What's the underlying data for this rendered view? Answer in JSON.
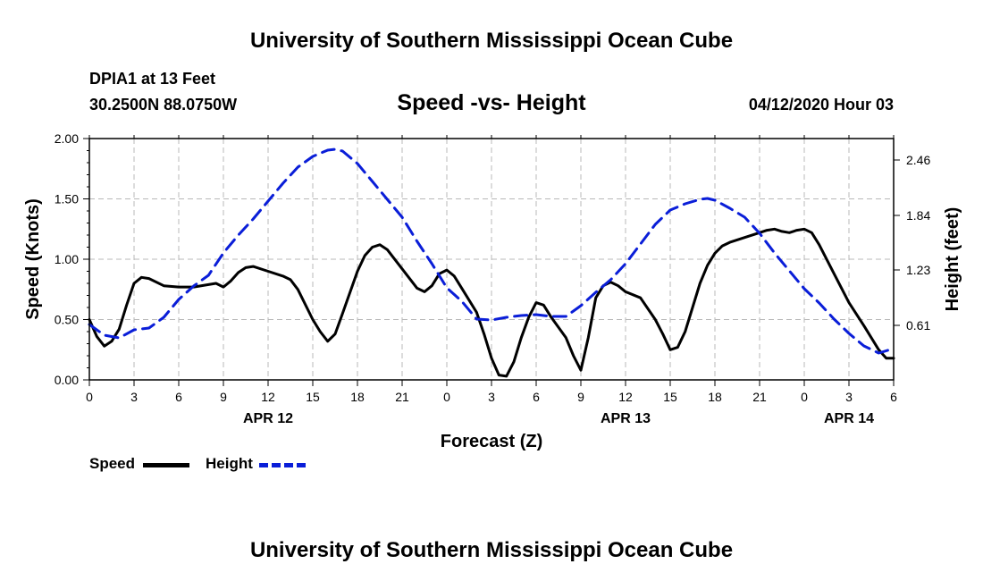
{
  "header": {
    "title": "University of Southern Mississippi Ocean Cube",
    "station": "DPIA1 at 13 Feet",
    "coords": "30.2500N 88.0750W",
    "subtitle": "Speed -vs- Height",
    "datetime": "04/12/2020 Hour 03"
  },
  "footer": {
    "title": "University of Southern Mississippi Ocean Cube"
  },
  "legend": {
    "speed_label": "Speed",
    "height_label": "Height",
    "speed_color": "#000000",
    "height_color": "#0a1ed8"
  },
  "chart_data": {
    "type": "line",
    "title": "Speed -vs- Height",
    "xlabel": "Forecast (Z)",
    "ylabel_left": "Speed (Knots)",
    "ylabel_right": "Height (feet)",
    "x_range": [
      0,
      54
    ],
    "x_unit": "hours since 00Z Apr 12 2020",
    "x_ticks": [
      {
        "x": 0,
        "label": "0"
      },
      {
        "x": 3,
        "label": "3"
      },
      {
        "x": 6,
        "label": "6"
      },
      {
        "x": 9,
        "label": "9"
      },
      {
        "x": 12,
        "label": "12"
      },
      {
        "x": 15,
        "label": "15"
      },
      {
        "x": 18,
        "label": "18"
      },
      {
        "x": 21,
        "label": "21"
      },
      {
        "x": 24,
        "label": "0"
      },
      {
        "x": 27,
        "label": "3"
      },
      {
        "x": 30,
        "label": "6"
      },
      {
        "x": 33,
        "label": "9"
      },
      {
        "x": 36,
        "label": "12"
      },
      {
        "x": 39,
        "label": "15"
      },
      {
        "x": 42,
        "label": "18"
      },
      {
        "x": 45,
        "label": "21"
      },
      {
        "x": 48,
        "label": "0"
      },
      {
        "x": 51,
        "label": "3"
      },
      {
        "x": 54,
        "label": "6"
      }
    ],
    "date_labels": [
      {
        "x": 12,
        "label": "APR 12"
      },
      {
        "x": 36,
        "label": "APR 13"
      },
      {
        "x": 51,
        "label": "APR 14"
      }
    ],
    "y_left": {
      "min": 0,
      "max": 2.0,
      "ticks": [
        "0.00",
        "0.50",
        "1.00",
        "1.50",
        "2.00"
      ]
    },
    "y_right": {
      "min": 0,
      "max": 2.7,
      "ticks": [
        "0.61",
        "1.23",
        "1.84",
        "2.46"
      ]
    },
    "grid": true,
    "series": [
      {
        "name": "Speed",
        "axis": "left",
        "color": "#000000",
        "style": "solid",
        "points": [
          [
            0,
            0.5
          ],
          [
            0.5,
            0.36
          ],
          [
            1,
            0.28
          ],
          [
            1.5,
            0.32
          ],
          [
            2,
            0.42
          ],
          [
            2.5,
            0.62
          ],
          [
            3,
            0.8
          ],
          [
            3.5,
            0.85
          ],
          [
            4,
            0.84
          ],
          [
            5,
            0.78
          ],
          [
            6,
            0.77
          ],
          [
            7,
            0.77
          ],
          [
            8,
            0.79
          ],
          [
            8.5,
            0.8
          ],
          [
            9,
            0.77
          ],
          [
            9.5,
            0.82
          ],
          [
            10,
            0.89
          ],
          [
            10.5,
            0.93
          ],
          [
            11,
            0.94
          ],
          [
            12,
            0.9
          ],
          [
            13,
            0.86
          ],
          [
            13.5,
            0.83
          ],
          [
            14,
            0.75
          ],
          [
            15,
            0.5
          ],
          [
            15.5,
            0.4
          ],
          [
            16,
            0.32
          ],
          [
            16.5,
            0.38
          ],
          [
            17,
            0.55
          ],
          [
            18,
            0.9
          ],
          [
            18.5,
            1.03
          ],
          [
            19,
            1.1
          ],
          [
            19.5,
            1.12
          ],
          [
            20,
            1.08
          ],
          [
            21,
            0.92
          ],
          [
            22,
            0.76
          ],
          [
            22.5,
            0.73
          ],
          [
            23,
            0.78
          ],
          [
            23.5,
            0.88
          ],
          [
            24,
            0.91
          ],
          [
            24.5,
            0.86
          ],
          [
            25,
            0.76
          ],
          [
            26,
            0.56
          ],
          [
            26.5,
            0.38
          ],
          [
            27,
            0.18
          ],
          [
            27.5,
            0.04
          ],
          [
            28,
            0.03
          ],
          [
            28.5,
            0.15
          ],
          [
            29,
            0.35
          ],
          [
            29.5,
            0.52
          ],
          [
            30,
            0.64
          ],
          [
            30.5,
            0.62
          ],
          [
            31,
            0.52
          ],
          [
            32,
            0.35
          ],
          [
            32.5,
            0.2
          ],
          [
            33,
            0.08
          ],
          [
            33.5,
            0.35
          ],
          [
            34,
            0.68
          ],
          [
            34.5,
            0.78
          ],
          [
            35,
            0.81
          ],
          [
            35.5,
            0.78
          ],
          [
            36,
            0.73
          ],
          [
            37,
            0.68
          ],
          [
            38,
            0.5
          ],
          [
            38.5,
            0.38
          ],
          [
            39,
            0.25
          ],
          [
            39.5,
            0.27
          ],
          [
            40,
            0.4
          ],
          [
            41,
            0.8
          ],
          [
            41.5,
            0.95
          ],
          [
            42,
            1.05
          ],
          [
            42.5,
            1.11
          ],
          [
            43,
            1.14
          ],
          [
            44,
            1.18
          ],
          [
            45,
            1.22
          ],
          [
            45.5,
            1.24
          ],
          [
            46,
            1.25
          ],
          [
            46.5,
            1.23
          ],
          [
            47,
            1.22
          ],
          [
            47.5,
            1.24
          ],
          [
            48,
            1.25
          ],
          [
            48.5,
            1.22
          ],
          [
            49,
            1.12
          ],
          [
            50,
            0.88
          ],
          [
            51,
            0.64
          ],
          [
            52,
            0.45
          ],
          [
            53,
            0.25
          ],
          [
            53.5,
            0.18
          ],
          [
            54,
            0.18
          ]
        ]
      },
      {
        "name": "Height",
        "axis": "right",
        "color": "#0a1ed8",
        "style": "dashed",
        "points": [
          [
            0,
            0.62
          ],
          [
            0.5,
            0.56
          ],
          [
            1,
            0.5
          ],
          [
            2,
            0.47
          ],
          [
            3,
            0.56
          ],
          [
            4,
            0.58
          ],
          [
            5,
            0.7
          ],
          [
            6,
            0.9
          ],
          [
            7,
            1.05
          ],
          [
            8,
            1.17
          ],
          [
            9,
            1.42
          ],
          [
            10,
            1.62
          ],
          [
            11,
            1.8
          ],
          [
            12,
            2.0
          ],
          [
            13,
            2.2
          ],
          [
            14,
            2.38
          ],
          [
            15,
            2.5
          ],
          [
            16,
            2.57
          ],
          [
            16.5,
            2.58
          ],
          [
            17,
            2.56
          ],
          [
            18,
            2.42
          ],
          [
            19,
            2.22
          ],
          [
            20,
            2.02
          ],
          [
            21,
            1.82
          ],
          [
            22,
            1.55
          ],
          [
            23,
            1.3
          ],
          [
            24,
            1.03
          ],
          [
            25,
            0.88
          ],
          [
            26,
            0.68
          ],
          [
            27,
            0.67
          ],
          [
            28,
            0.7
          ],
          [
            29,
            0.72
          ],
          [
            30,
            0.73
          ],
          [
            31,
            0.71
          ],
          [
            32,
            0.71
          ],
          [
            33,
            0.83
          ],
          [
            34,
            0.98
          ],
          [
            35,
            1.12
          ],
          [
            36,
            1.3
          ],
          [
            37,
            1.52
          ],
          [
            38,
            1.74
          ],
          [
            39,
            1.9
          ],
          [
            40,
            1.97
          ],
          [
            41,
            2.02
          ],
          [
            41.5,
            2.03
          ],
          [
            42,
            2.01
          ],
          [
            43,
            1.92
          ],
          [
            44,
            1.82
          ],
          [
            45,
            1.64
          ],
          [
            46,
            1.42
          ],
          [
            47,
            1.22
          ],
          [
            48,
            1.02
          ],
          [
            49,
            0.86
          ],
          [
            50,
            0.68
          ],
          [
            51,
            0.52
          ],
          [
            52,
            0.38
          ],
          [
            53,
            0.3
          ],
          [
            54,
            0.35
          ]
        ]
      }
    ]
  }
}
